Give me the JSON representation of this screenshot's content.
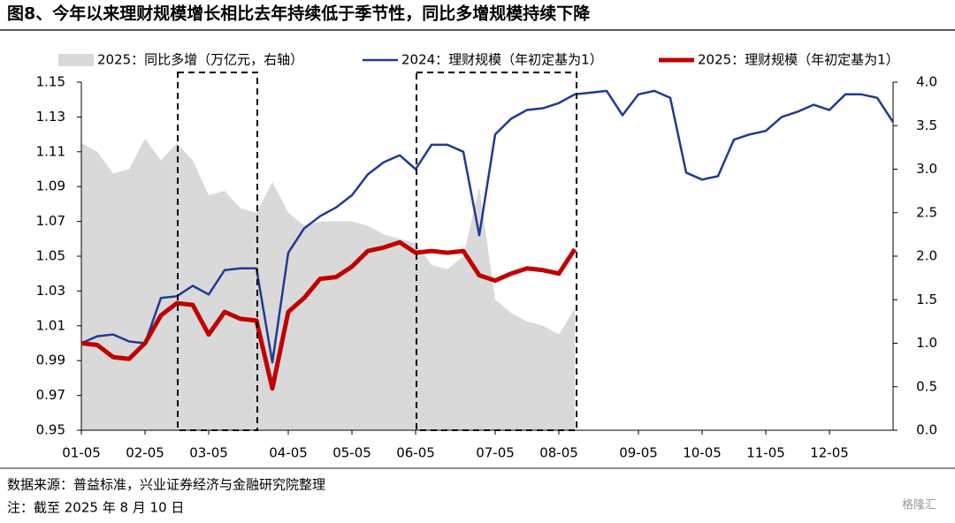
{
  "title": "图8、今年以来理财规模增长相比去年持续低于季节性，同比多增规模持续下降",
  "source": "数据来源：普益标准，兴业证券经济与金融研究院整理",
  "note": "注：截至 2025 年 8 月 10 日",
  "watermark": "格隆汇",
  "chart_data": {
    "type": "line",
    "categories": [
      "01-05",
      null,
      null,
      null,
      "02-05",
      null,
      null,
      null,
      "03-05",
      null,
      null,
      null,
      null,
      "04-05",
      null,
      null,
      null,
      "05-05",
      null,
      null,
      null,
      "06-05",
      null,
      null,
      null,
      null,
      "07-05",
      null,
      null,
      null,
      "08-05",
      null,
      null,
      null,
      null,
      "09-05",
      null,
      null,
      null,
      "10-05",
      null,
      null,
      null,
      "11-05",
      null,
      null,
      null,
      "12-05",
      null,
      null,
      null,
      null
    ],
    "ylim": [
      0.95,
      1.15
    ],
    "yticks": [
      0.95,
      0.97,
      0.99,
      1.01,
      1.03,
      1.05,
      1.07,
      1.09,
      1.11,
      1.13,
      1.15
    ],
    "y2lim": [
      0,
      4
    ],
    "y2ticks": [
      {
        "value": 0,
        "label": "0.0"
      },
      0.5,
      {
        "value": 1,
        "label": "1.0"
      },
      1.5,
      {
        "value": 2,
        "label": "2.0"
      },
      2.5,
      {
        "value": 3,
        "label": "3.0"
      },
      3.5,
      {
        "value": 4,
        "label": "4.0"
      }
    ],
    "series": [
      {
        "name": "2025：同比多增（万亿元，右轴）",
        "type": "area",
        "axis": "y2",
        "color": "#d9d9d9",
        "values": [
          3.3,
          3.2,
          2.95,
          3.0,
          3.35,
          3.1,
          3.3,
          3.1,
          2.7,
          2.75,
          2.55,
          2.5,
          2.85,
          2.5,
          2.35,
          2.4,
          2.4,
          2.4,
          2.35,
          2.25,
          2.2,
          2.15,
          1.9,
          1.85,
          2.0,
          2.8,
          1.5,
          1.35,
          1.25,
          1.2,
          1.1,
          1.4,
          null,
          null,
          null,
          null,
          null,
          null,
          null,
          null,
          null,
          null,
          null,
          null,
          null,
          null,
          null,
          null,
          null,
          null,
          null,
          null
        ]
      },
      {
        "name": "2024：理财规模（年初定基为1）",
        "type": "line",
        "color": "#1f3a93",
        "values": [
          1.0,
          1.004,
          1.005,
          1.001,
          1.0,
          1.026,
          1.027,
          1.033,
          1.028,
          1.042,
          1.043,
          1.043,
          0.989,
          1.052,
          1.066,
          1.073,
          1.078,
          1.085,
          1.097,
          1.104,
          1.108,
          1.1,
          1.114,
          1.114,
          1.11,
          1.062,
          1.12,
          1.129,
          1.134,
          1.135,
          1.138,
          1.143,
          1.144,
          1.145,
          1.131,
          1.143,
          1.145,
          1.141,
          1.098,
          1.094,
          1.096,
          1.117,
          1.12,
          1.122,
          1.13,
          1.133,
          1.137,
          1.134,
          1.143,
          1.143,
          1.141,
          1.127
        ]
      },
      {
        "name": "2025：理财规模（年初定基为1）",
        "type": "line",
        "color": "#c00000",
        "values": [
          1.0,
          0.999,
          0.992,
          0.991,
          1.0,
          1.016,
          1.023,
          1.022,
          1.005,
          1.018,
          1.014,
          1.013,
          0.974,
          1.018,
          1.026,
          1.037,
          1.038,
          1.044,
          1.053,
          1.055,
          1.058,
          1.052,
          1.053,
          1.052,
          1.053,
          1.039,
          1.036,
          1.04,
          1.043,
          1.042,
          1.04,
          1.054,
          null,
          null,
          null,
          null,
          null,
          null,
          null,
          null,
          null,
          null,
          null,
          null,
          null,
          null,
          null,
          null,
          null,
          null,
          null,
          null
        ]
      }
    ]
  }
}
